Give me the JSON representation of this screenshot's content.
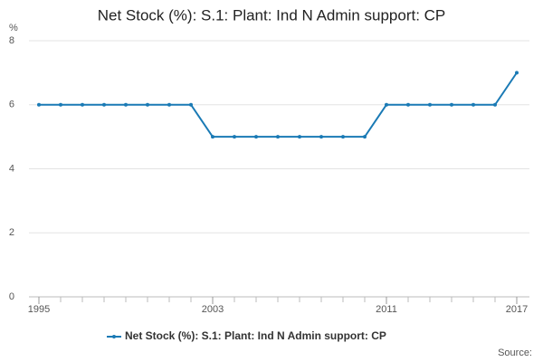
{
  "chart_data": {
    "type": "line",
    "title": "Net Stock (%): S.1: Plant: Ind N Admin support: CP",
    "y_label": "%",
    "source": "Source:",
    "x": [
      1995,
      1996,
      1997,
      1998,
      1999,
      2000,
      2001,
      2002,
      2003,
      2004,
      2005,
      2006,
      2007,
      2008,
      2009,
      2010,
      2011,
      2012,
      2013,
      2014,
      2015,
      2016,
      2017
    ],
    "series": [
      {
        "name": "Net Stock (%): S.1: Plant: Ind N Admin support: CP",
        "color": "#1a7ab5",
        "values": [
          6,
          6,
          6,
          6,
          6,
          6,
          6,
          6,
          5,
          5,
          5,
          5,
          5,
          5,
          5,
          5,
          6,
          6,
          6,
          6,
          6,
          6,
          7
        ]
      }
    ],
    "xlim": [
      1995,
      2017
    ],
    "xticks": [
      1995,
      2003,
      2011,
      2017
    ],
    "ylim": [
      0,
      8
    ],
    "yticks": [
      0,
      2,
      4,
      6,
      8
    ],
    "grid": true,
    "legend": "bottom"
  }
}
